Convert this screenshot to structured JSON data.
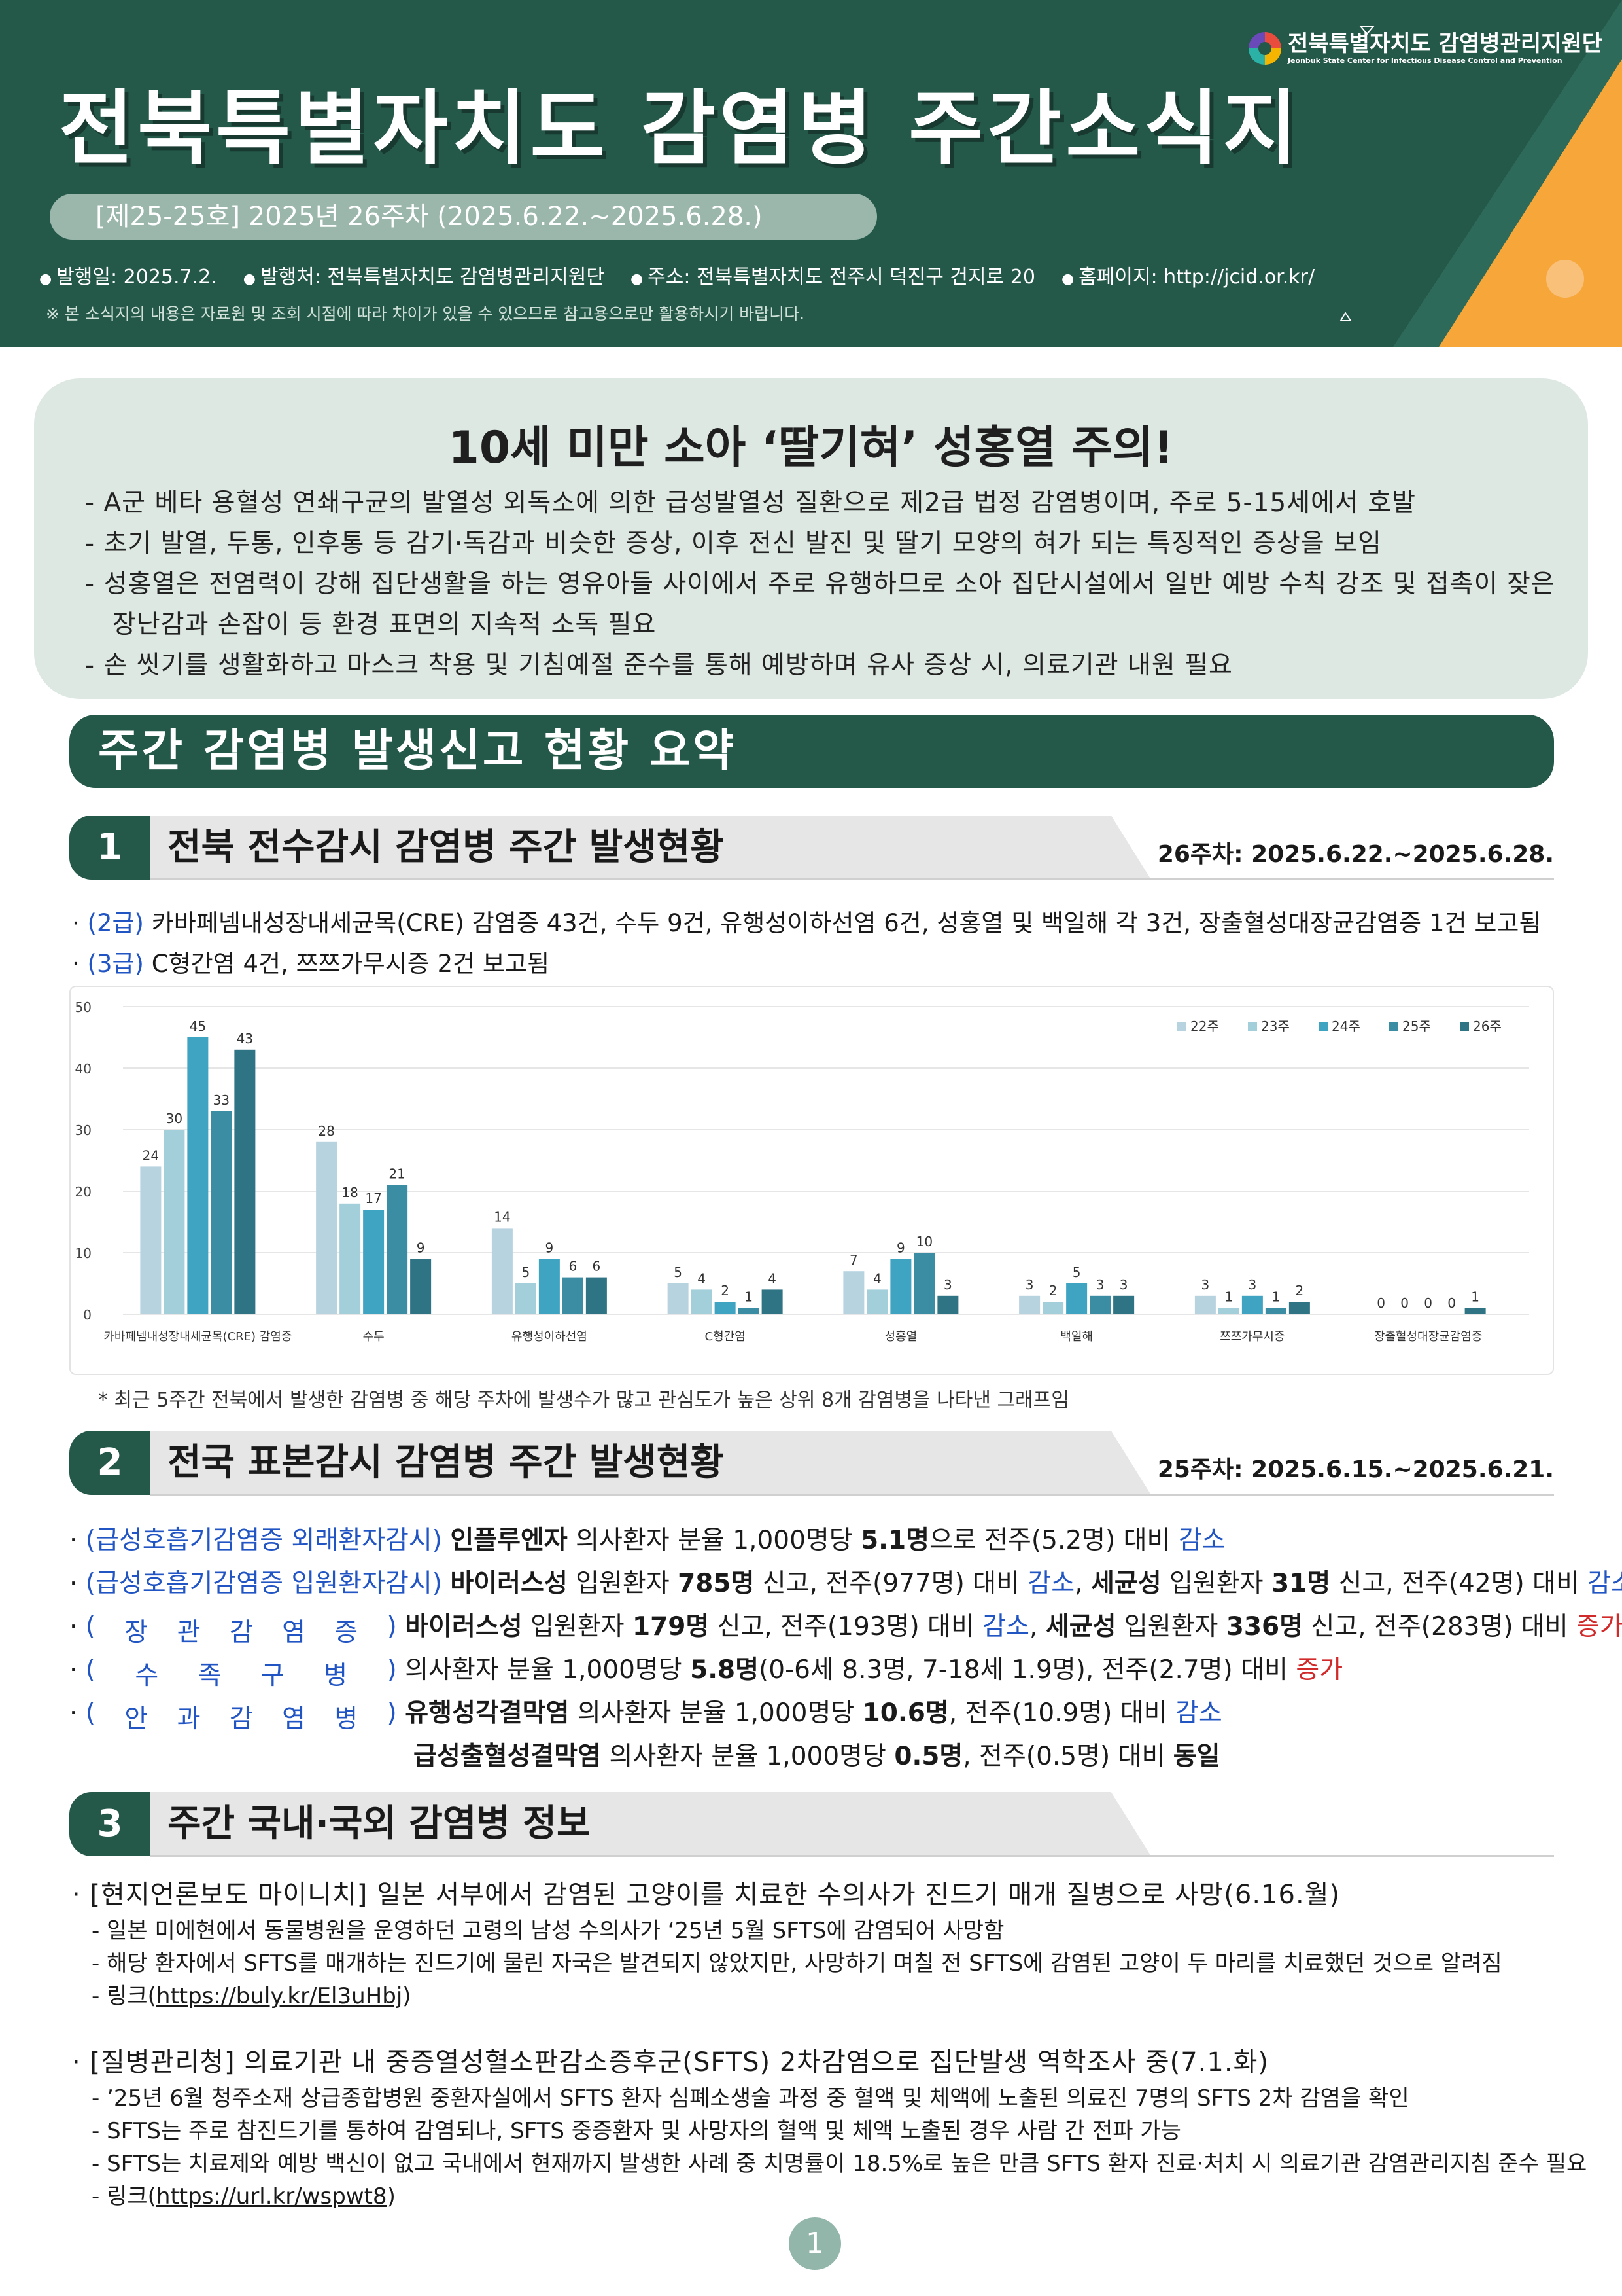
{
  "header": {
    "logo_ko": "전북특별자치도 감염병관리지원단",
    "logo_en": "Jeonbuk State Center for Infectious Disease Control and Prevention",
    "title": "전북특별자치도 감염병 주간소식지",
    "issue": "[제25-25호] 2025년 26주차 (2025.6.22.~2025.6.28.)",
    "pub_date": "발행일: 2025.7.2.",
    "publisher": "발행처: 전북특별자치도 감염병관리지원단",
    "address": "주소: 전북특별자치도 전주시 덕진구 건지로 20",
    "homepage": "홈페이지: http://jcid.or.kr/",
    "note": "※ 본 소식지의 내용은 자료원 및 조회 시점에 따라 차이가 있을 수 있으므로 참고용으로만 활용하시기 바랍니다."
  },
  "highlight": {
    "title": "10세 미만 소아 ‘딸기혀’ 성홍열 주의!",
    "items": [
      "A군 베타 용혈성 연쇄구균의 발열성 외독소에 의한 급성발열성 질환으로 제2급 법정 감염병이며, 주로 5-15세에서 호발",
      "초기 발열, 두통, 인후통 등 감기·독감과 비슷한 증상, 이후 전신 발진 및 딸기 모양의 혀가 되는 특징적인 증상을 보임",
      "성홍열은 전염력이 강해 집단생활을 하는 영유아들 사이에서 주로 유행하므로 소아 집단시설에서 일반 예방 수칙 강조 및 접촉이 잦은 장난감과 손잡이 등 환경 표면의 지속적 소독 필요",
      "손 씻기를 생활화하고 마스크 착용 및 기침예절 준수를 통해 예방하며 유사 증상 시, 의료기관 내원 필요"
    ]
  },
  "banner": "주간 감염병 발생신고 현황 요약",
  "section1": {
    "num": "1",
    "title": "전북 전수감시 감염병 주간 발생현황",
    "date": "26주차: 2025.6.22.~2025.6.28.",
    "line1_tag": "(2급)",
    "line1_text": "카바페넴내성장내세균목(CRE) 감염증 43건, 수두 9건, 유행성이하선염 6건, 성홍열 및 백일해 각 3건, 장출혈성대장균감염증 1건 보고됨",
    "line2_tag": "(3급)",
    "line2_text": "C형간염 4건, 쯔쯔가무시증 2건 보고됨",
    "chart_note": "* 최근 5주간 전북에서 발생한 감염병 중 해당 주차에 발생수가 많고 관심도가 높은 상위 8개 감염병을 나타낸 그래프임"
  },
  "chart_data": {
    "type": "bar",
    "categories": [
      "카바페넴내성장내세균목(CRE) 감염증",
      "수두",
      "유행성이하선염",
      "C형간염",
      "성홍열",
      "백일해",
      "쯔쯔가무시증",
      "장출혈성대장균감염증"
    ],
    "series": [
      {
        "name": "22주",
        "color": "#b8d3e0",
        "values": [
          24,
          28,
          14,
          5,
          7,
          3,
          3,
          0
        ]
      },
      {
        "name": "23주",
        "color": "#a3cfda",
        "values": [
          30,
          18,
          5,
          4,
          4,
          2,
          1,
          0
        ]
      },
      {
        "name": "24주",
        "color": "#3fa4c2",
        "values": [
          45,
          17,
          9,
          2,
          9,
          5,
          3,
          0
        ]
      },
      {
        "name": "25주",
        "color": "#3a8da3",
        "values": [
          33,
          21,
          6,
          1,
          10,
          3,
          1,
          0
        ]
      },
      {
        "name": "26주",
        "color": "#2f7484",
        "values": [
          43,
          9,
          6,
          4,
          3,
          3,
          2,
          1
        ]
      }
    ],
    "ylim": [
      0,
      50
    ],
    "yticks": [
      0,
      10,
      20,
      30,
      40,
      50
    ],
    "legend": "top-right",
    "grid": true
  },
  "section2": {
    "num": "2",
    "title": "전국 표본감시 감염병 주간 발생현황",
    "date": "25주차: 2025.6.15.~2025.6.21.",
    "r1_label": "(급성호흡기감염증 외래환자감시)",
    "r1_a": "인플루엔자",
    "r1_b": " 의사환자 분율 1,000명당 ",
    "r1_c": "5.1명",
    "r1_d": "으로 전주(5.2명) 대비 ",
    "r1_e": "감소",
    "r2_label": "(급성호흡기감염증 입원환자감시)",
    "r2_a": "바이러스성",
    "r2_b": " 입원환자 ",
    "r2_c": "785명",
    "r2_d": " 신고, 전주(977명) 대비 ",
    "r2_e": "감소",
    "r2_f": ", ",
    "r2_g": "세균성",
    "r2_h": " 입원환자 ",
    "r2_i": "31명",
    "r2_j": " 신고, 전주(42명) 대비 ",
    "r2_k": "감소",
    "r3_label_chars": [
      "(",
      "장",
      "관",
      "감",
      "염",
      "증",
      ")"
    ],
    "r3_a": "바이러스성",
    "r3_b": " 입원환자 ",
    "r3_c": "179명",
    "r3_d": " 신고, 전주(193명) 대비 ",
    "r3_e": "감소",
    "r3_f": ", ",
    "r3_g": "세균성",
    "r3_h": " 입원환자 ",
    "r3_i": "336명",
    "r3_j": " 신고, 전주(283명) 대비 ",
    "r3_k": "증가",
    "r4_label_chars": [
      "(",
      "수",
      "족",
      "구",
      "병",
      ")"
    ],
    "r4_a": "의사환자 분율 1,000명당 ",
    "r4_b": "5.8명",
    "r4_c": "(0-6세 8.3명, 7-18세 1.9명), 전주(2.7명) 대비 ",
    "r4_d": "증가",
    "r5_label_chars": [
      "(",
      "안",
      "과",
      "감",
      "염",
      "병",
      ")"
    ],
    "r5_a": "유행성각결막염",
    "r5_b": " 의사환자 분율 1,000명당 ",
    "r5_c": "10.6명",
    "r5_d": ", 전주(10.9명) 대비 ",
    "r5_e": "감소",
    "r6_a": "급성출혈성결막염",
    "r6_b": " 의사환자 분율 1,000명당 ",
    "r6_c": "0.5명",
    "r6_d": ", 전주(0.5명) 대비 ",
    "r6_e": "동일"
  },
  "section3": {
    "num": "3",
    "title": "주간 국내·국외 감염병 정보",
    "news1_title": "[현지언론보도 마이니치] 일본 서부에서 감염된 고양이를 치료한 수의사가 진드기 매개 질병으로 사망(6.16.월)",
    "news1_items": [
      "- 일본 미에현에서 동물병원을 운영하던 고령의 남성 수의사가 ‘25년 5월 SFTS에 감염되어 사망함",
      "- 해당 환자에서 SFTS를 매개하는 진드기에 물린 자국은 발견되지 않았지만, 사망하기 며칠 전 SFTS에 감염된 고양이 두 마리를 치료했던 것으로 알려짐"
    ],
    "news1_link_prefix": "- 링크(",
    "news1_link": "https://buly.kr/El3uHbj",
    "news1_link_suffix": ")",
    "news2_title": "[질병관리청] 의료기관 내 중증열성혈소판감소증후군(SFTS) 2차감염으로 집단발생 역학조사 중(7.1.화)",
    "news2_items": [
      "- ’25년 6월 청주소재 상급종합병원 중환자실에서 SFTS 환자 심폐소생술 과정 중 혈액 및 체액에 노출된 의료진 7명의 SFTS 2차 감염을 확인",
      "- SFTS는 주로 참진드기를 통하여 감염되나, SFTS 중증환자 및 사망자의 혈액 및 체액 노출된 경우 사람 간 전파 가능",
      "- SFTS는 치료제와 예방 백신이 없고 국내에서 현재까지 발생한 사례 중 치명률이 18.5%로 높은 만큼 SFTS 환자 진료·처치 시 의료기관 감염관리지침 준수 필요"
    ],
    "news2_link_prefix": "- 링크(",
    "news2_link": "https://url.kr/wspwt8",
    "news2_link_suffix": ")"
  },
  "page_number": "1",
  "colors": {
    "primary": "#245849",
    "accent": "#f7a73a",
    "blue": "#2255c4",
    "red": "#d12a2a"
  }
}
